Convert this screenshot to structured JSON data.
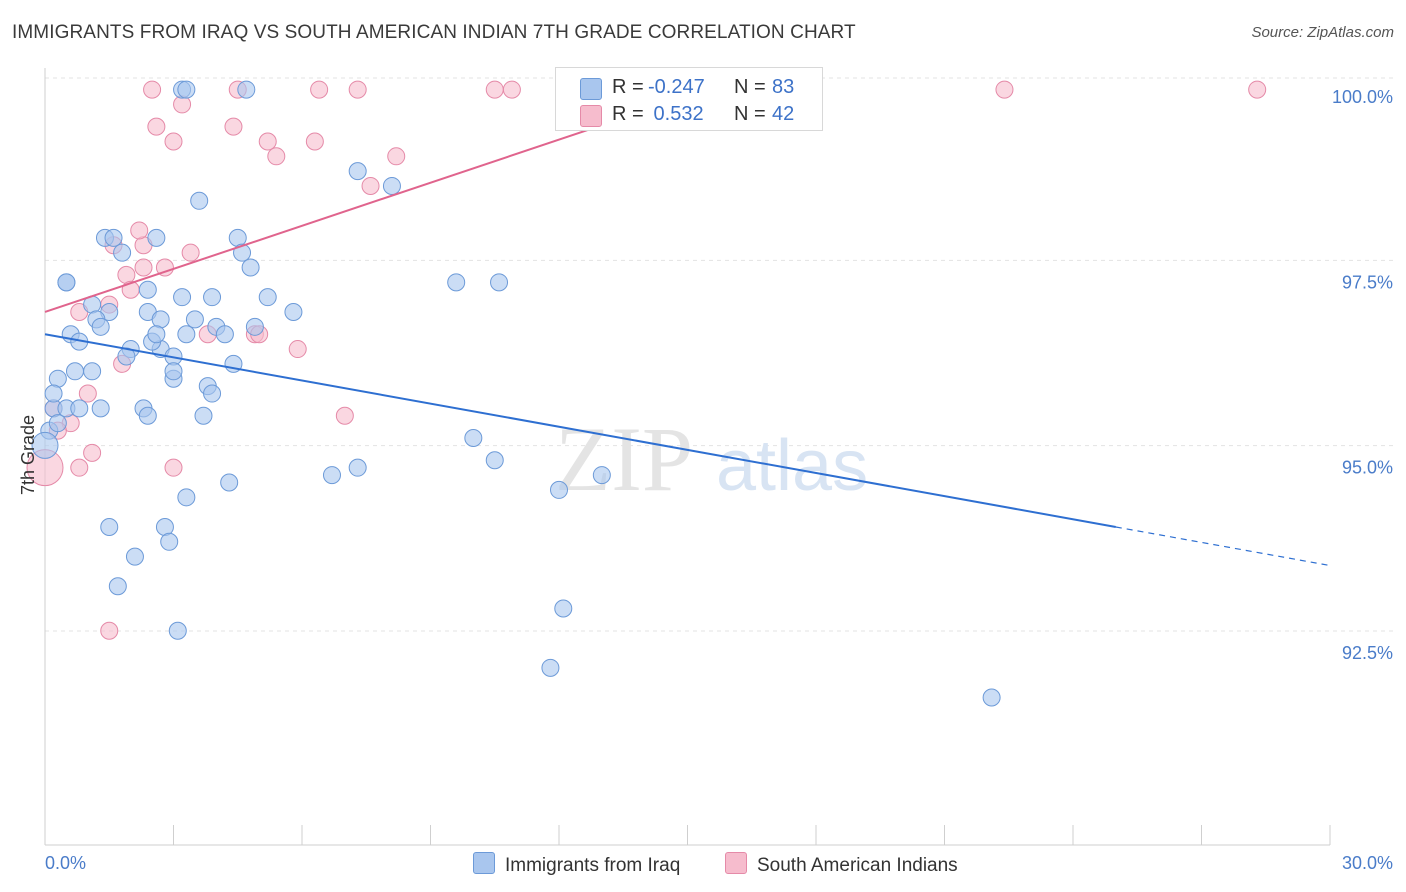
{
  "title": "IMMIGRANTS FROM IRAQ VS SOUTH AMERICAN INDIAN 7TH GRADE CORRELATION CHART",
  "source": "Source: ZipAtlas.com",
  "watermark": {
    "zip": "ZIP",
    "atlas": "atlas"
  },
  "legend": {
    "rows": [
      {
        "r_label": "R =",
        "r_value": "-0.247",
        "n_label": "N =",
        "n_value": "83"
      },
      {
        "r_label": "R =",
        "r_value": " 0.532",
        "n_label": "N =",
        "n_value": "42"
      }
    ]
  },
  "bottom_legend": {
    "series_1": "Immigrants from Iraq",
    "series_2": "South American Indians"
  },
  "colors": {
    "blue_fill": "#a9c6ee",
    "blue_stroke": "#6c9ad8",
    "blue_line": "#2e6fd1",
    "pink_fill": "#f6bccd",
    "pink_stroke": "#e58aa8",
    "pink_line": "#e0648d",
    "grid": "#e3e3e3",
    "tick_text": "#4a7cc9"
  },
  "chart_data": {
    "type": "scatter",
    "title": "IMMIGRANTS FROM IRAQ VS SOUTH AMERICAN INDIAN 7TH GRADE CORRELATION CHART",
    "xlabel": "",
    "ylabel": "7th Grade",
    "xlim": [
      0,
      30
    ],
    "ylim": [
      90.3,
      100.2
    ],
    "x_tick_labels": [
      "0.0%",
      "30.0%"
    ],
    "y_ticks": [
      92.5,
      95.0,
      97.5,
      100.0
    ],
    "y_tick_labels": [
      "92.5%",
      "95.0%",
      "97.5%",
      "100.0%"
    ],
    "grid": "horizontal dashed",
    "legend_position": "top-center",
    "series": [
      {
        "name": "Immigrants from Iraq",
        "color": "#a9c6ee",
        "trend": {
          "x": [
            0,
            25
          ],
          "y": [
            96.8,
            94.2
          ],
          "dashed_extension": [
            25,
            30
          ]
        },
        "points": [
          [
            3.2,
            100.1
          ],
          [
            3.3,
            100.1
          ],
          [
            4.7,
            100.1
          ],
          [
            14.1,
            100.1
          ],
          [
            7.3,
            99.0
          ],
          [
            3.6,
            98.6
          ],
          [
            8.1,
            98.8
          ],
          [
            1.4,
            98.1
          ],
          [
            1.6,
            98.1
          ],
          [
            2.6,
            98.1
          ],
          [
            1.8,
            97.9
          ],
          [
            4.5,
            98.1
          ],
          [
            4.6,
            97.9
          ],
          [
            0.5,
            97.5
          ],
          [
            0.5,
            97.5
          ],
          [
            1.1,
            97.2
          ],
          [
            1.5,
            97.1
          ],
          [
            2.4,
            97.4
          ],
          [
            3.2,
            97.3
          ],
          [
            3.9,
            97.3
          ],
          [
            5.2,
            97.3
          ],
          [
            5.8,
            97.1
          ],
          [
            9.6,
            97.5
          ],
          [
            10.6,
            97.5
          ],
          [
            2.4,
            97.1
          ],
          [
            2.7,
            97.0
          ],
          [
            3.5,
            97.0
          ],
          [
            4.0,
            96.9
          ],
          [
            4.2,
            96.8
          ],
          [
            4.9,
            96.9
          ],
          [
            0.6,
            96.8
          ],
          [
            0.8,
            96.7
          ],
          [
            1.2,
            97.0
          ],
          [
            1.3,
            96.9
          ],
          [
            2.0,
            96.6
          ],
          [
            2.7,
            96.6
          ],
          [
            2.5,
            96.7
          ],
          [
            2.6,
            96.8
          ],
          [
            3.3,
            96.8
          ],
          [
            3.0,
            96.5
          ],
          [
            1.9,
            96.5
          ],
          [
            4.4,
            96.4
          ],
          [
            0.3,
            96.2
          ],
          [
            0.7,
            96.3
          ],
          [
            1.1,
            96.3
          ],
          [
            3.0,
            96.2
          ],
          [
            3.0,
            96.3
          ],
          [
            3.8,
            96.1
          ],
          [
            3.9,
            96.0
          ],
          [
            0.2,
            95.8
          ],
          [
            0.5,
            95.8
          ],
          [
            0.8,
            95.8
          ],
          [
            1.3,
            95.8
          ],
          [
            2.3,
            95.8
          ],
          [
            2.4,
            95.7
          ],
          [
            3.7,
            95.7
          ],
          [
            0.1,
            95.5
          ],
          [
            0.3,
            95.6
          ],
          [
            10.0,
            95.4
          ],
          [
            10.5,
            95.1
          ],
          [
            7.3,
            95.0
          ],
          [
            6.7,
            94.9
          ],
          [
            4.3,
            94.8
          ],
          [
            12.0,
            94.7
          ],
          [
            13.0,
            94.9
          ],
          [
            3.3,
            94.6
          ],
          [
            1.5,
            94.2
          ],
          [
            2.8,
            94.2
          ],
          [
            2.9,
            94.0
          ],
          [
            2.1,
            93.8
          ],
          [
            1.7,
            93.4
          ],
          [
            12.1,
            93.1
          ],
          [
            3.1,
            92.8
          ],
          [
            11.8,
            92.3
          ],
          [
            22.1,
            91.9
          ],
          [
            0.0,
            95.3
          ],
          [
            0.2,
            96.0
          ],
          [
            4.8,
            97.7
          ]
        ]
      },
      {
        "name": "South American Indians",
        "color": "#f6bccd",
        "trend": {
          "x": [
            0,
            16
          ],
          "y": [
            97.1,
            100.2
          ]
        },
        "points": [
          [
            2.5,
            100.1
          ],
          [
            4.5,
            100.1
          ],
          [
            6.4,
            100.1
          ],
          [
            7.3,
            100.1
          ],
          [
            10.5,
            100.1
          ],
          [
            10.9,
            100.1
          ],
          [
            22.4,
            100.1
          ],
          [
            28.3,
            100.1
          ],
          [
            3.2,
            99.9
          ],
          [
            2.6,
            99.6
          ],
          [
            4.4,
            99.6
          ],
          [
            3.0,
            99.4
          ],
          [
            5.2,
            99.4
          ],
          [
            6.3,
            99.4
          ],
          [
            5.4,
            99.2
          ],
          [
            8.2,
            99.2
          ],
          [
            7.6,
            98.8
          ],
          [
            1.6,
            98.0
          ],
          [
            2.3,
            98.0
          ],
          [
            3.4,
            97.9
          ],
          [
            2.3,
            97.7
          ],
          [
            1.9,
            97.6
          ],
          [
            2.0,
            97.4
          ],
          [
            1.5,
            97.2
          ],
          [
            0.8,
            97.1
          ],
          [
            4.9,
            96.8
          ],
          [
            5.0,
            96.8
          ],
          [
            5.9,
            96.6
          ],
          [
            1.8,
            96.4
          ],
          [
            1.0,
            96.0
          ],
          [
            7.0,
            95.7
          ],
          [
            0.6,
            95.6
          ],
          [
            0.3,
            95.5
          ],
          [
            1.1,
            95.2
          ],
          [
            0.8,
            95.0
          ],
          [
            3.0,
            95.0
          ],
          [
            0.0,
            95.0
          ],
          [
            1.5,
            92.8
          ],
          [
            0.2,
            95.8
          ],
          [
            3.8,
            96.8
          ],
          [
            2.2,
            98.2
          ],
          [
            2.8,
            97.7
          ]
        ]
      }
    ]
  }
}
